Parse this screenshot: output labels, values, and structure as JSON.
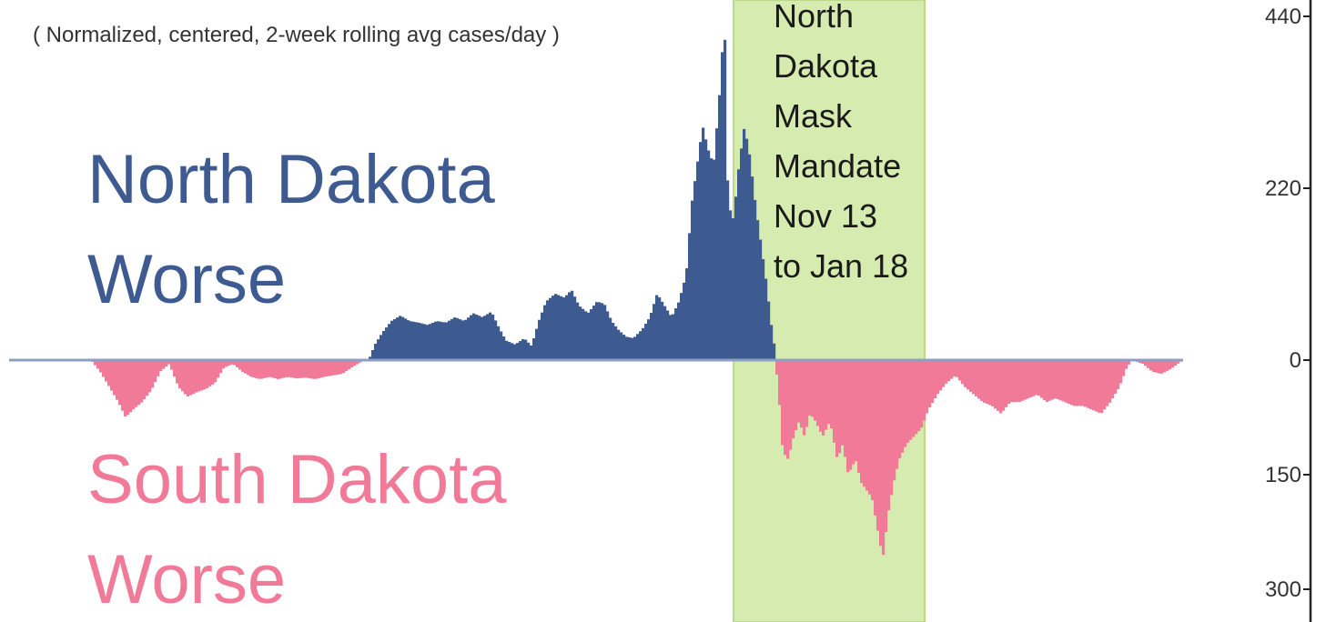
{
  "chart_data": {
    "type": "bar",
    "subtitle": "( Normalized, centered, 2-week rolling avg cases/day )",
    "upper_label": [
      "North Dakota",
      "Worse"
    ],
    "lower_label": [
      "South Dakota",
      "Worse"
    ],
    "annotation": [
      "North",
      "Dakota",
      "Mask",
      "Mandate",
      "Nov 13",
      "to Jan 18"
    ],
    "y_axis": {
      "upper_ticks": [
        440,
        220,
        0
      ],
      "lower_ticks": [
        150,
        300
      ],
      "upper_range": [
        0,
        440
      ],
      "lower_range": [
        0,
        300
      ]
    },
    "series": [
      {
        "name": "North Dakota Worse",
        "color": "#3d5a91",
        "points": [
          [
            405,
            0
          ],
          [
            412,
            20
          ],
          [
            420,
            35
          ],
          [
            430,
            50
          ],
          [
            440,
            57
          ],
          [
            450,
            50
          ],
          [
            460,
            48
          ],
          [
            470,
            45
          ],
          [
            480,
            50
          ],
          [
            490,
            48
          ],
          [
            500,
            55
          ],
          [
            510,
            50
          ],
          [
            520,
            60
          ],
          [
            530,
            55
          ],
          [
            540,
            62
          ],
          [
            548,
            42
          ],
          [
            556,
            25
          ],
          [
            566,
            20
          ],
          [
            576,
            28
          ],
          [
            584,
            18
          ],
          [
            592,
            50
          ],
          [
            600,
            75
          ],
          [
            610,
            85
          ],
          [
            620,
            80
          ],
          [
            628,
            90
          ],
          [
            636,
            70
          ],
          [
            646,
            60
          ],
          [
            656,
            75
          ],
          [
            664,
            72
          ],
          [
            672,
            50
          ],
          [
            680,
            38
          ],
          [
            688,
            30
          ],
          [
            696,
            28
          ],
          [
            706,
            40
          ],
          [
            714,
            55
          ],
          [
            722,
            85
          ],
          [
            730,
            70
          ],
          [
            738,
            55
          ],
          [
            746,
            75
          ],
          [
            754,
            110
          ],
          [
            760,
            200
          ],
          [
            766,
            250
          ],
          [
            772,
            300
          ],
          [
            778,
            270
          ],
          [
            784,
            250
          ],
          [
            790,
            330
          ],
          [
            796,
            440
          ],
          [
            800,
            200
          ],
          [
            806,
            180
          ],
          [
            812,
            250
          ],
          [
            818,
            300
          ],
          [
            824,
            260
          ],
          [
            830,
            200
          ],
          [
            836,
            150
          ],
          [
            842,
            100
          ],
          [
            848,
            40
          ],
          [
            852,
            10
          ]
        ]
      },
      {
        "name": "South Dakota Worse",
        "color": "#f07a98",
        "points": [
          [
            100,
            0
          ],
          [
            110,
            15
          ],
          [
            120,
            35
          ],
          [
            130,
            55
          ],
          [
            138,
            75
          ],
          [
            146,
            65
          ],
          [
            156,
            55
          ],
          [
            166,
            40
          ],
          [
            176,
            15
          ],
          [
            186,
            5
          ],
          [
            196,
            35
          ],
          [
            206,
            48
          ],
          [
            216,
            42
          ],
          [
            226,
            38
          ],
          [
            236,
            30
          ],
          [
            246,
            10
          ],
          [
            256,
            5
          ],
          [
            266,
            15
          ],
          [
            276,
            22
          ],
          [
            286,
            25
          ],
          [
            296,
            22
          ],
          [
            306,
            25
          ],
          [
            316,
            22
          ],
          [
            326,
            24
          ],
          [
            336,
            23
          ],
          [
            346,
            25
          ],
          [
            356,
            22
          ],
          [
            366,
            20
          ],
          [
            376,
            18
          ],
          [
            386,
            10
          ],
          [
            396,
            3
          ],
          [
            852,
            0
          ],
          [
            856,
            50
          ],
          [
            860,
            120
          ],
          [
            866,
            130
          ],
          [
            872,
            100
          ],
          [
            878,
            80
          ],
          [
            884,
            100
          ],
          [
            890,
            70
          ],
          [
            896,
            80
          ],
          [
            904,
            100
          ],
          [
            912,
            80
          ],
          [
            920,
            130
          ],
          [
            926,
            110
          ],
          [
            932,
            150
          ],
          [
            940,
            130
          ],
          [
            946,
            160
          ],
          [
            952,
            170
          ],
          [
            958,
            180
          ],
          [
            964,
            220
          ],
          [
            970,
            260
          ],
          [
            976,
            200
          ],
          [
            982,
            160
          ],
          [
            988,
            130
          ],
          [
            996,
            110
          ],
          [
            1004,
            100
          ],
          [
            1012,
            90
          ],
          [
            1020,
            65
          ],
          [
            1030,
            45
          ],
          [
            1040,
            30
          ],
          [
            1050,
            20
          ],
          [
            1060,
            35
          ],
          [
            1070,
            45
          ],
          [
            1080,
            55
          ],
          [
            1090,
            60
          ],
          [
            1100,
            70
          ],
          [
            1110,
            55
          ],
          [
            1120,
            55
          ],
          [
            1130,
            50
          ],
          [
            1140,
            45
          ],
          [
            1150,
            55
          ],
          [
            1160,
            50
          ],
          [
            1170,
            55
          ],
          [
            1180,
            60
          ],
          [
            1190,
            60
          ],
          [
            1200,
            65
          ],
          [
            1210,
            70
          ],
          [
            1220,
            55
          ],
          [
            1230,
            35
          ],
          [
            1238,
            10
          ],
          [
            1244,
            0
          ],
          [
            1256,
            5
          ],
          [
            1266,
            15
          ],
          [
            1276,
            18
          ],
          [
            1286,
            12
          ],
          [
            1294,
            5
          ],
          [
            1300,
            0
          ]
        ]
      }
    ],
    "highlight_x_range": [
      806,
      1016
    ],
    "x_axis_range": [
      0,
      1440
    ]
  },
  "colors": {
    "north": "#3d5a91",
    "south": "#f07a98",
    "highlight": "#d6ebb0",
    "highlight_edge": "#bcd98a"
  }
}
